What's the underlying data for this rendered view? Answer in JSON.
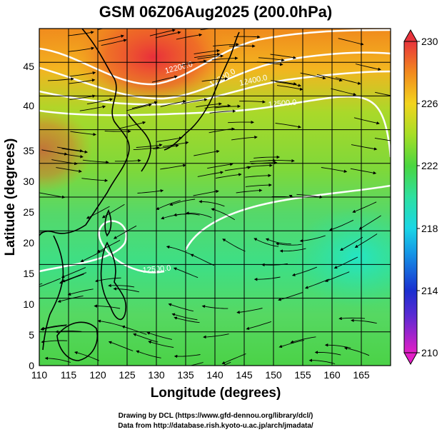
{
  "title": "GSM 06Z06Aug2025 (200.0hPa)",
  "xlabel": "Longitude (degrees)",
  "ylabel": "Latitude  (degrees)",
  "x_ticks": [
    "110",
    "115",
    "120",
    "125",
    "130",
    "135",
    "140",
    "145",
    "150",
    "155",
    "160",
    "165"
  ],
  "y_ticks": [
    "0",
    "5",
    "10",
    "15",
    "20",
    "25",
    "30",
    "35",
    "40",
    "45"
  ],
  "colorbar": {
    "ticks": [
      "210",
      "214",
      "218",
      "222",
      "226",
      "230"
    ],
    "min": 210,
    "max": 230
  },
  "contour_labels": [
    "12200.0",
    "12300.0",
    "12400.0",
    "12500.0",
    "12500.0"
  ],
  "credits": [
    "Drawing by DCL (https://www.gfd-dennou.org/library/dcl/)",
    "Data from http://database.rish.kyoto-u.ac.jp/arch/jmadata/"
  ],
  "chart_data": {
    "type": "heatmap",
    "title": "GSM 06Z06Aug2025 (200.0hPa)",
    "xlabel": "Longitude (degrees)",
    "ylabel": "Latitude  (degrees)",
    "xlim": [
      110,
      170
    ],
    "ylim": [
      0,
      50
    ],
    "colorbar_range": [
      210,
      230
    ],
    "grid": true,
    "overlays": [
      "streamlines",
      "geopotential-height-contours",
      "coastlines"
    ],
    "contours": [
      12200.0,
      12300.0,
      12400.0,
      12500.0,
      12500.0
    ]
  }
}
